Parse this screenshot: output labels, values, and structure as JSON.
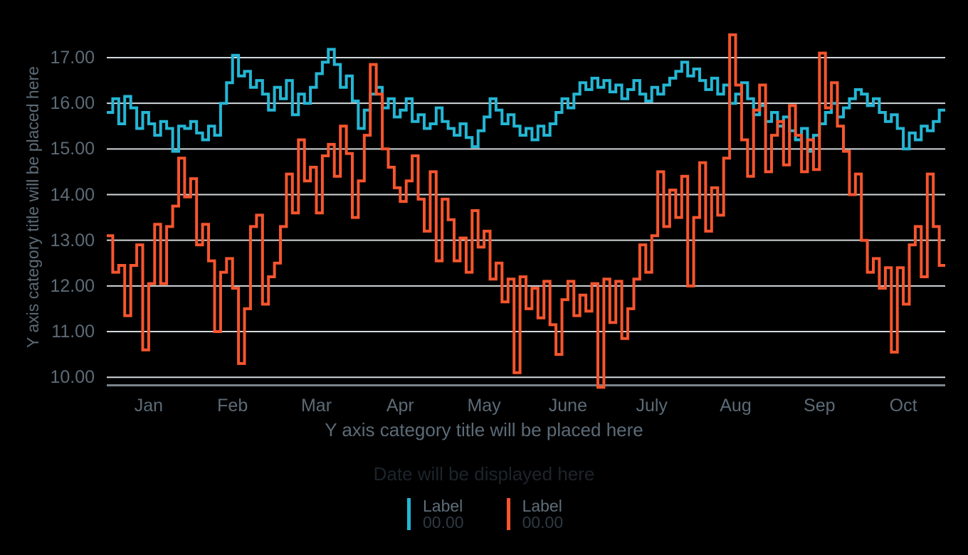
{
  "colors": {
    "background": "#000000",
    "gridline": "#d3d8db",
    "axis_line": "#7b848b",
    "axis_text": "#5c6b77",
    "footnote_text": "#1c242b",
    "legend_label_text": "#5e6e7a",
    "legend_value_text": "#2e3944",
    "series1": "#24b6d4",
    "series2": "#f6552e"
  },
  "chart_data": {
    "type": "line",
    "interpolation": "step-after",
    "grid": "horizontal",
    "legend_position": "bottom",
    "y_axis_title": "Y axis category title will be placed here",
    "x_axis_title": "Y axis category title will be placed here",
    "footnote": "Date will be displayed here",
    "x_categories": [
      "Jan",
      "Feb",
      "Mar",
      "Apr",
      "May",
      "June",
      "July",
      "Aug",
      "Sep",
      "Oct"
    ],
    "y_ticks": [
      "17.00",
      "16.00",
      "15.00",
      "14.00",
      "13.00",
      "12.00",
      "11.00",
      "10.00"
    ],
    "ylim": [
      9.6,
      17.75
    ],
    "series": [
      {
        "name": "Label",
        "legend_value": "00.00",
        "color": "#24b6d4",
        "values": [
          15.8,
          16.1,
          15.55,
          16.15,
          15.9,
          15.45,
          15.8,
          15.55,
          15.3,
          15.6,
          15.45,
          14.95,
          15.5,
          15.45,
          15.6,
          15.35,
          15.2,
          15.5,
          15.3,
          16.0,
          16.45,
          17.05,
          16.6,
          16.7,
          16.35,
          16.5,
          16.2,
          15.85,
          16.35,
          16.1,
          16.5,
          15.75,
          16.2,
          16.0,
          16.35,
          16.65,
          16.9,
          17.18,
          16.85,
          16.35,
          16.6,
          16.05,
          15.45,
          15.85,
          16.2,
          16.35,
          15.9,
          16.1,
          15.7,
          15.85,
          16.1,
          15.6,
          15.75,
          15.45,
          15.55,
          15.9,
          15.6,
          15.45,
          15.3,
          15.55,
          15.25,
          15.05,
          15.4,
          15.7,
          16.1,
          15.85,
          15.55,
          15.75,
          15.5,
          15.3,
          15.45,
          15.2,
          15.5,
          15.3,
          15.55,
          15.8,
          16.1,
          15.9,
          16.2,
          16.45,
          16.3,
          16.55,
          16.35,
          16.5,
          16.25,
          16.4,
          16.1,
          16.3,
          16.5,
          16.2,
          16.05,
          16.35,
          16.2,
          16.4,
          16.55,
          16.7,
          16.9,
          16.6,
          16.75,
          16.5,
          16.3,
          16.55,
          16.2,
          16.4,
          16.0,
          16.2,
          16.45,
          16.1,
          15.75,
          15.95,
          15.6,
          15.8,
          15.5,
          15.7,
          15.4,
          15.2,
          15.45,
          14.95,
          15.3,
          15.55,
          15.8,
          16.0,
          15.7,
          15.9,
          16.1,
          16.3,
          16.2,
          15.95,
          16.1,
          15.8,
          15.6,
          15.75,
          15.45,
          15.0,
          15.35,
          15.2,
          15.5,
          15.4,
          15.6,
          15.85
        ]
      },
      {
        "name": "Label",
        "legend_value": "00.00",
        "color": "#f6552e",
        "values": [
          13.1,
          12.3,
          12.45,
          11.35,
          12.45,
          12.9,
          10.6,
          12.05,
          13.35,
          12.05,
          13.3,
          13.75,
          14.8,
          13.95,
          14.35,
          12.9,
          13.35,
          12.55,
          11.0,
          12.3,
          12.6,
          11.95,
          10.3,
          11.5,
          13.3,
          13.55,
          11.6,
          12.2,
          12.5,
          13.3,
          14.45,
          13.6,
          15.2,
          14.3,
          14.6,
          13.6,
          14.85,
          15.1,
          14.4,
          15.5,
          14.9,
          13.5,
          14.3,
          15.3,
          16.85,
          16.2,
          15.0,
          14.6,
          14.15,
          13.85,
          14.3,
          14.85,
          13.9,
          13.2,
          14.5,
          12.55,
          13.9,
          13.45,
          12.55,
          13.05,
          12.3,
          13.65,
          12.85,
          13.2,
          12.15,
          12.5,
          11.65,
          12.15,
          10.1,
          12.2,
          11.5,
          11.95,
          11.3,
          12.1,
          11.15,
          10.5,
          11.7,
          12.1,
          11.35,
          11.8,
          11.45,
          12.05,
          9.78,
          12.15,
          11.2,
          12.1,
          10.85,
          11.5,
          12.15,
          12.9,
          12.3,
          13.1,
          14.5,
          13.3,
          14.1,
          13.5,
          14.4,
          12.0,
          13.5,
          14.7,
          13.2,
          14.15,
          13.55,
          14.8,
          17.5,
          16.4,
          15.2,
          14.4,
          15.85,
          16.4,
          14.5,
          15.3,
          15.6,
          14.65,
          15.95,
          15.3,
          14.5,
          15.2,
          14.55,
          17.1,
          15.9,
          16.45,
          15.5,
          14.95,
          14.0,
          14.45,
          13.0,
          12.3,
          12.6,
          11.95,
          12.4,
          10.55,
          12.4,
          11.6,
          12.9,
          13.3,
          12.2,
          14.45,
          13.3,
          12.45
        ]
      }
    ]
  },
  "legend": {
    "items": [
      {
        "label": "Label",
        "value": "00.00"
      },
      {
        "label": "Label",
        "value": "00.00"
      }
    ]
  }
}
